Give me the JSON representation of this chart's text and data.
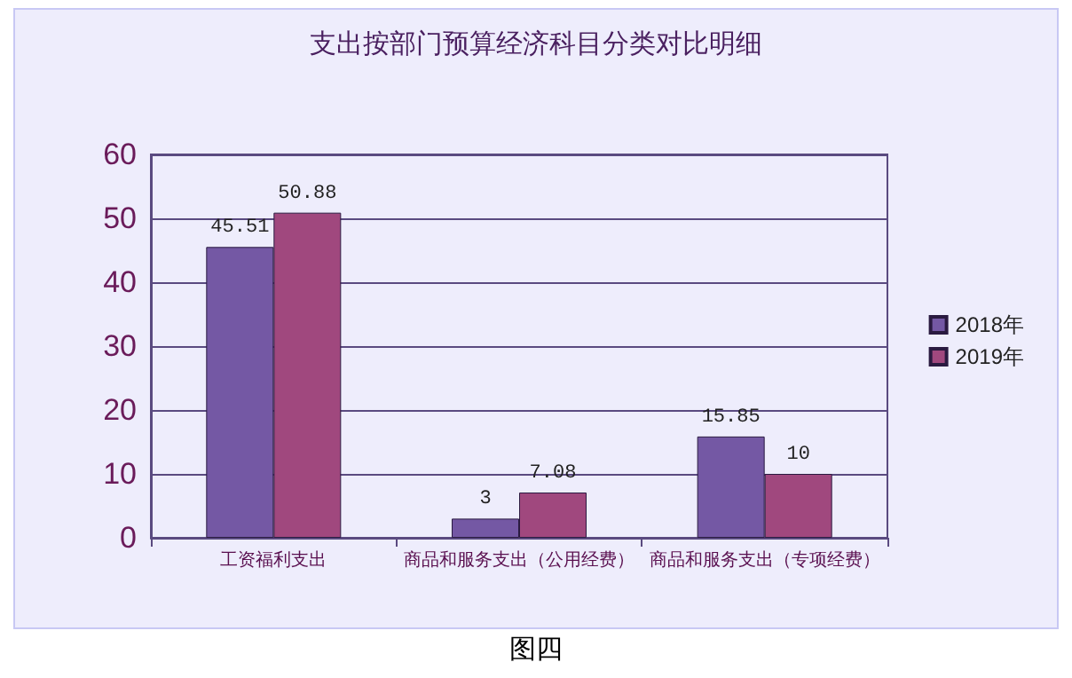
{
  "chart_data": {
    "type": "bar",
    "title": "支出按部门预算经济科目分类对比明细",
    "categories": [
      "工资福利支出",
      "商品和服务支出（公用经费）",
      "商品和服务支出（专项经费）"
    ],
    "series": [
      {
        "name": "2018年",
        "color": "#7458a4",
        "values": [
          45.51,
          3,
          15.85
        ]
      },
      {
        "name": "2019年",
        "color": "#a0487e",
        "values": [
          50.88,
          7.08,
          10
        ]
      }
    ],
    "ylim": [
      0,
      60
    ],
    "yticks": [
      0,
      10,
      20,
      30,
      40,
      50,
      60
    ],
    "grid": "y",
    "legend": "right",
    "data_labels": true,
    "annotations": [
      "图四"
    ]
  }
}
